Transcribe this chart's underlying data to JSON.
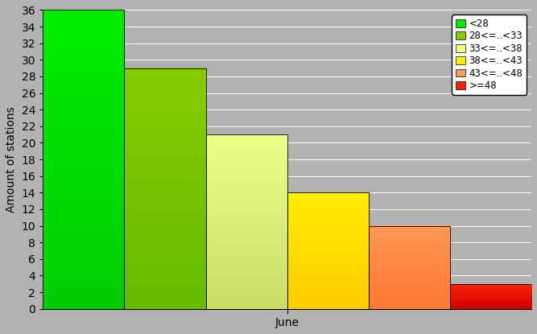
{
  "bars": [
    {
      "label": "<28",
      "value": 36,
      "color_top": "#00ee00",
      "color_bot": "#00cc00"
    },
    {
      "label": "28<=..<33",
      "value": 29,
      "color_top": "#88cc00",
      "color_bot": "#66bb00"
    },
    {
      "label": "33<=..<38",
      "value": 21,
      "color_top": "#eeff88",
      "color_bot": "#ccdd66"
    },
    {
      "label": "38<=..<43",
      "value": 14,
      "color_top": "#ffee00",
      "color_bot": "#ffcc00"
    },
    {
      "label": "43<=..<48",
      "value": 10,
      "color_top": "#ff9955",
      "color_bot": "#ff7733"
    },
    {
      "label": ">=48",
      "value": 3,
      "color_top": "#ff2200",
      "color_bot": "#cc0000"
    }
  ],
  "legend_colors": [
    "#00ee00",
    "#88cc00",
    "#eeff88",
    "#ffee00",
    "#ff9955",
    "#ff2200"
  ],
  "ylabel": "Amount of stations",
  "xlabel": "June",
  "ylim": [
    0,
    36
  ],
  "yticks": [
    0,
    2,
    4,
    6,
    8,
    10,
    12,
    14,
    16,
    18,
    20,
    22,
    24,
    26,
    28,
    30,
    32,
    34,
    36
  ],
  "bg_color": "#b2b2b2",
  "grid_color": "#c8c8c8",
  "axis_fontsize": 10,
  "legend_fontsize": 8.5
}
